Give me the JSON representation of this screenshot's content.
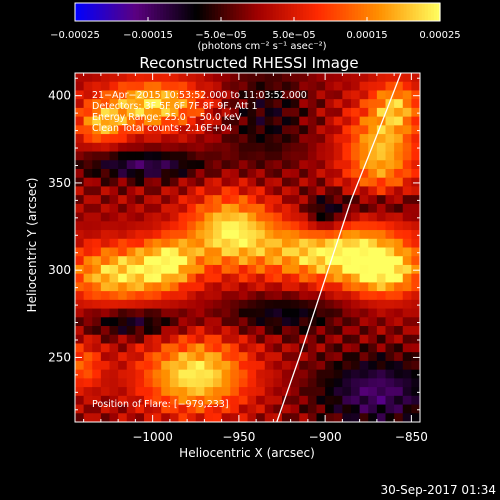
{
  "chart_data": {
    "type": "heatmap",
    "title": "Reconstructed RHESSI Image",
    "xlabel": "Heliocentric X (arcsec)",
    "ylabel": "Heliocentric Y (arcsec)",
    "xlim": [
      -1045,
      -845
    ],
    "ylim": [
      213,
      413
    ],
    "xticks": [
      -1000,
      -950,
      -900,
      -850
    ],
    "xtick_labels": [
      "−1000",
      "−950",
      "−900",
      "−850"
    ],
    "yticks": [
      250,
      300,
      350,
      400
    ],
    "ytick_labels": [
      "250",
      "300",
      "350",
      "400"
    ],
    "colorbar": {
      "range": [
        -0.00025,
        0.00025
      ],
      "ticks": [
        -0.00025,
        -0.00015,
        -5e-05,
        5e-05,
        0.00015,
        0.00025
      ],
      "tick_labels": [
        "−0.00025",
        "−0.00015",
        "−5.0e−05",
        "5.0e−05",
        "0.00015",
        "0.00025"
      ],
      "units": "(photons cm⁻² s⁻¹ asec⁻²)",
      "colormap": [
        "#0000ff",
        "#5b0080",
        "#000000",
        "#a00000",
        "#ff2a00",
        "#ff9000",
        "#ffff60"
      ]
    },
    "annotations": [
      "21−Apr−2015 10:53:52.000 to 11:03:52.000",
      "Detectors: 3F 5F 6F 7F 8F 9F, Att 1",
      "Energy Range: 25.0 − 50.0 keV",
      "Clean     Total counts: 2.16E+04"
    ],
    "position_label": "Position of Flare: [−979,233]",
    "limb_curve": [
      [
        -928,
        213
      ],
      [
        -915,
        250
      ],
      [
        -900,
        295
      ],
      [
        -885,
        340
      ],
      [
        -867,
        385
      ],
      [
        -856,
        413
      ]
    ],
    "blobs": [
      {
        "x": -1000,
        "y": 395,
        "sx": 22,
        "sy": 10,
        "v": 0.00022
      },
      {
        "x": -1030,
        "y": 383,
        "sx": 10,
        "sy": 8,
        "v": 0.00016
      },
      {
        "x": -868,
        "y": 368,
        "sx": 15,
        "sy": 20,
        "v": 0.0002
      },
      {
        "x": -858,
        "y": 395,
        "sx": 10,
        "sy": 10,
        "v": 0.00014
      },
      {
        "x": -955,
        "y": 323,
        "sx": 18,
        "sy": 15,
        "v": 0.00023
      },
      {
        "x": -1020,
        "y": 298,
        "sx": 22,
        "sy": 12,
        "v": 0.00022
      },
      {
        "x": -990,
        "y": 305,
        "sx": 12,
        "sy": 10,
        "v": 0.00018
      },
      {
        "x": -895,
        "y": 310,
        "sx": 30,
        "sy": 12,
        "v": 0.00025
      },
      {
        "x": -865,
        "y": 298,
        "sx": 15,
        "sy": 10,
        "v": 0.00019
      },
      {
        "x": -975,
        "y": 240,
        "sx": 22,
        "sy": 15,
        "v": 0.00024
      },
      {
        "x": -1040,
        "y": 245,
        "sx": 8,
        "sy": 10,
        "v": 0.00012
      },
      {
        "x": -900,
        "y": 330,
        "sx": 8,
        "sy": 8,
        "v": -0.00012
      },
      {
        "x": -1005,
        "y": 360,
        "sx": 25,
        "sy": 6,
        "v": -0.00014
      },
      {
        "x": -870,
        "y": 338,
        "sx": 20,
        "sy": 6,
        "v": -0.0001
      },
      {
        "x": -1010,
        "y": 270,
        "sx": 20,
        "sy": 6,
        "v": -0.00012
      },
      {
        "x": -925,
        "y": 275,
        "sx": 25,
        "sy": 8,
        "v": -0.0001
      },
      {
        "x": -870,
        "y": 230,
        "sx": 25,
        "sy": 15,
        "v": -0.00015
      },
      {
        "x": -935,
        "y": 388,
        "sx": 18,
        "sy": 22,
        "v": -8e-05
      }
    ]
  },
  "footer": {
    "timestamp": "30-Sep-2017 01:34"
  }
}
